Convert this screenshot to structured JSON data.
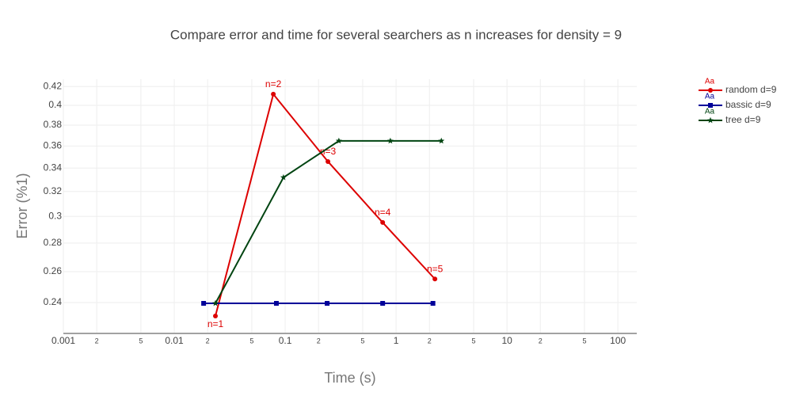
{
  "chart_data": {
    "type": "line",
    "title": "Compare error and time for several searchers as n increases for density = 9",
    "x_label": "Time (s)",
    "y_label": "Error (%1)",
    "log_x": true,
    "log_y": true,
    "grid": true,
    "legend_position": "right",
    "legend_symbol_text": "Aa",
    "xlim": [
      0.001,
      148
    ],
    "ylim": [
      0.222,
      0.428
    ],
    "xticks": [
      0.001,
      {
        "value": 0.002,
        "label": "2"
      },
      {
        "value": 0.005,
        "label": "5"
      },
      0.01,
      {
        "value": 0.02,
        "label": "2"
      },
      {
        "value": 0.05,
        "label": "5"
      },
      0.1,
      {
        "value": 0.2,
        "label": "2"
      },
      {
        "value": 0.5,
        "label": "5"
      },
      1,
      {
        "value": 2,
        "label": "2"
      },
      {
        "value": 5,
        "label": "5"
      },
      10,
      {
        "value": 20,
        "label": "2"
      },
      {
        "value": 50,
        "label": "5"
      },
      100
    ],
    "yticks": [
      0.24,
      0.26,
      0.28,
      0.3,
      0.32,
      0.34,
      0.36,
      0.38,
      0.4,
      0.42
    ],
    "series": [
      {
        "name": "random d=9",
        "color": "#dd0000",
        "marker": "circle",
        "x": [
          0.0235,
          0.0782,
          0.243,
          0.757,
          2.24
        ],
        "values": [
          0.2318,
          0.4117,
          0.3458,
          0.2953,
          0.2551
        ],
        "text": [
          "n=1",
          "n=2",
          "n=3",
          "n=4",
          "n=5"
        ],
        "text_positions": [
          "bottom",
          "top",
          "top",
          "top",
          "top"
        ]
      },
      {
        "name": "bassic d=9",
        "color": "#000099",
        "marker": "square",
        "x": [
          0.0184,
          0.0833,
          0.239,
          0.757,
          2.15
        ],
        "values": [
          0.2395,
          0.2395,
          0.2395,
          0.2395,
          0.2395
        ]
      },
      {
        "name": "tree d=9",
        "color": "#004411",
        "marker": "star",
        "x": [
          0.0235,
          0.0965,
          0.305,
          0.888,
          2.56
        ],
        "values": [
          0.2395,
          0.3318,
          0.3648,
          0.3648,
          0.3648
        ]
      }
    ]
  }
}
